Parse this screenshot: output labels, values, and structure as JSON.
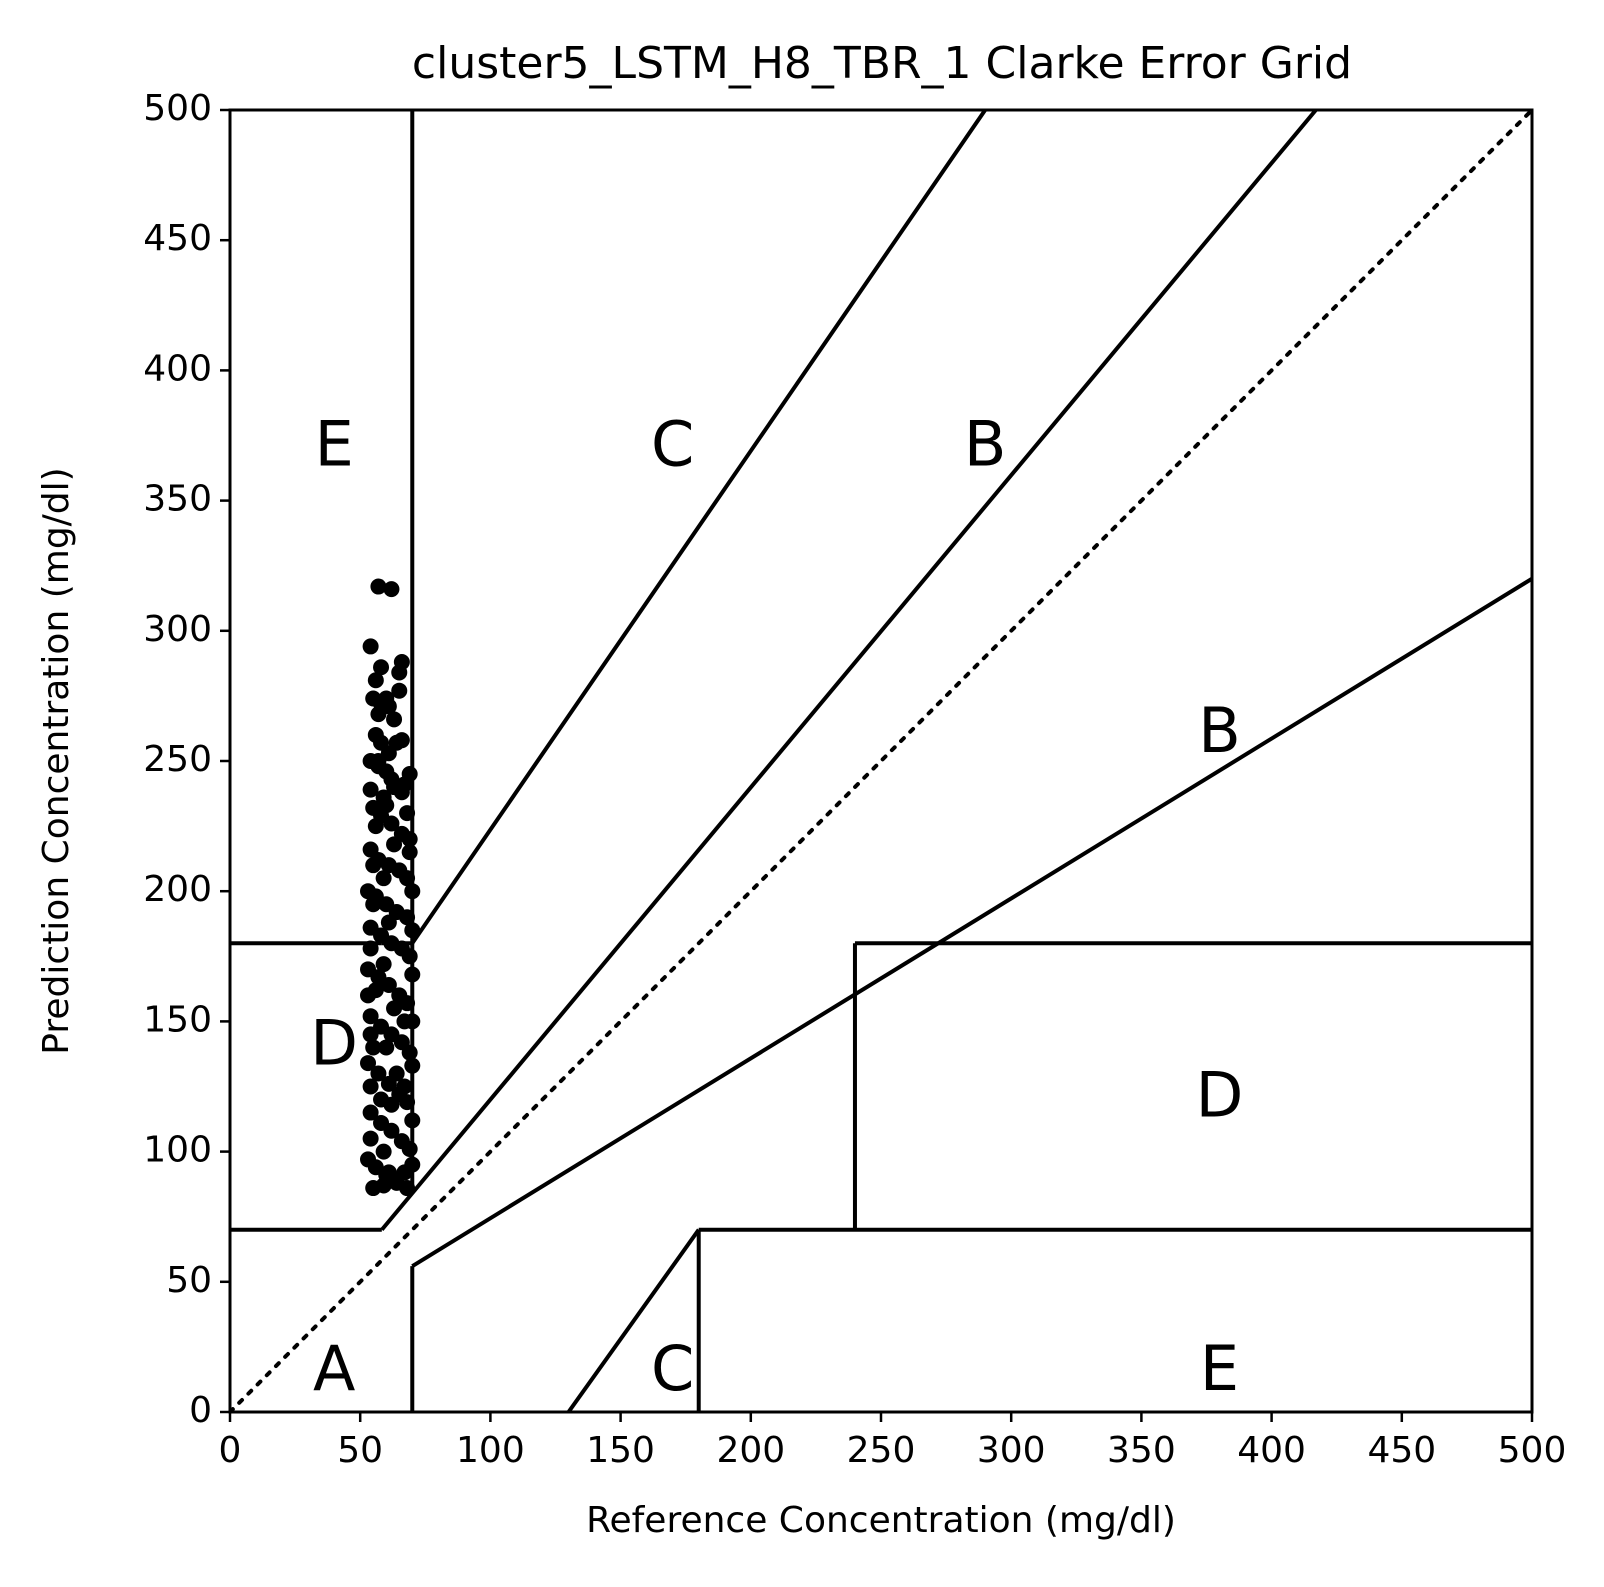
{
  "chart_data": {
    "type": "scatter",
    "title": "cluster5_LSTM_H8_TBR_1 Clarke Error Grid",
    "xlabel": "Reference Concentration (mg/dl)",
    "ylabel": "Prediction Concentration (mg/dl)",
    "xlim": [
      0,
      500
    ],
    "ylim": [
      0,
      500
    ],
    "xticks": [
      0,
      50,
      100,
      150,
      200,
      250,
      300,
      350,
      400,
      450,
      500
    ],
    "yticks": [
      0,
      50,
      100,
      150,
      200,
      250,
      300,
      350,
      400,
      450,
      500
    ],
    "grid": false,
    "legend": "none",
    "colors": {
      "lines": "#000000",
      "points": "#000000"
    },
    "reference_line": {
      "style": "dotted",
      "points": [
        [
          0,
          0
        ],
        [
          500,
          500
        ]
      ]
    },
    "zone_lines": [
      {
        "points": [
          [
            0,
            70
          ],
          [
            58.3,
            70
          ]
        ]
      },
      {
        "points": [
          [
            70,
            84
          ],
          [
            70,
            500
          ]
        ]
      },
      {
        "points": [
          [
            70,
            180
          ],
          [
            290,
            500
          ]
        ]
      },
      {
        "points": [
          [
            58.3,
            70
          ],
          [
            417,
            500
          ]
        ]
      },
      {
        "points": [
          [
            70,
            56
          ],
          [
            70,
            0
          ]
        ]
      },
      {
        "points": [
          [
            70,
            56
          ],
          [
            500,
            320
          ]
        ]
      },
      {
        "points": [
          [
            130,
            0
          ],
          [
            180,
            70
          ]
        ]
      },
      {
        "points": [
          [
            180,
            70
          ],
          [
            500,
            70
          ]
        ]
      },
      {
        "points": [
          [
            180,
            70
          ],
          [
            180,
            0
          ]
        ]
      },
      {
        "points": [
          [
            240,
            70
          ],
          [
            240,
            180
          ]
        ]
      },
      {
        "points": [
          [
            240,
            180
          ],
          [
            500,
            180
          ]
        ]
      },
      {
        "points": [
          [
            0,
            180
          ],
          [
            58.3,
            180
          ]
        ]
      },
      {
        "points": [
          [
            58.3,
            180
          ],
          [
            70,
            180
          ]
        ]
      }
    ],
    "zone_labels": [
      {
        "text": "E",
        "x": 40,
        "y": 370
      },
      {
        "text": "C",
        "x": 170,
        "y": 370
      },
      {
        "text": "B",
        "x": 290,
        "y": 370
      },
      {
        "text": "B",
        "x": 380,
        "y": 260
      },
      {
        "text": "D",
        "x": 40,
        "y": 140
      },
      {
        "text": "D",
        "x": 380,
        "y": 120
      },
      {
        "text": "A",
        "x": 40,
        "y": 15
      },
      {
        "text": "C",
        "x": 170,
        "y": 15
      },
      {
        "text": "E",
        "x": 380,
        "y": 15
      }
    ],
    "points": [
      [
        57,
        317
      ],
      [
        62,
        316
      ],
      [
        54,
        294
      ],
      [
        56,
        281
      ],
      [
        58,
        286
      ],
      [
        66,
        288
      ],
      [
        65,
        284
      ],
      [
        65,
        277
      ],
      [
        55,
        274
      ],
      [
        58,
        272
      ],
      [
        60,
        274
      ],
      [
        61,
        271
      ],
      [
        57,
        268
      ],
      [
        63,
        266
      ],
      [
        56,
        260
      ],
      [
        58,
        257
      ],
      [
        64,
        257
      ],
      [
        66,
        258
      ],
      [
        61,
        253
      ],
      [
        54,
        250
      ],
      [
        57,
        248
      ],
      [
        60,
        246
      ],
      [
        69,
        245
      ],
      [
        54,
        239
      ],
      [
        63,
        240
      ],
      [
        67,
        241
      ],
      [
        55,
        232
      ],
      [
        58,
        229
      ],
      [
        62,
        226
      ],
      [
        66,
        222
      ],
      [
        69,
        220
      ],
      [
        54,
        216
      ],
      [
        57,
        212
      ],
      [
        61,
        210
      ],
      [
        65,
        208
      ],
      [
        68,
        205
      ],
      [
        53,
        200
      ],
      [
        56,
        198
      ],
      [
        60,
        195
      ],
      [
        64,
        192
      ],
      [
        68,
        190
      ],
      [
        54,
        186
      ],
      [
        58,
        183
      ],
      [
        62,
        180
      ],
      [
        66,
        178
      ],
      [
        69,
        175
      ],
      [
        53,
        170
      ],
      [
        57,
        167
      ],
      [
        61,
        164
      ],
      [
        65,
        160
      ],
      [
        68,
        157
      ],
      [
        54,
        152
      ],
      [
        58,
        148
      ],
      [
        62,
        145
      ],
      [
        66,
        142
      ],
      [
        69,
        138
      ],
      [
        53,
        134
      ],
      [
        57,
        130
      ],
      [
        61,
        126
      ],
      [
        65,
        122
      ],
      [
        68,
        119
      ],
      [
        54,
        115
      ],
      [
        58,
        111
      ],
      [
        62,
        108
      ],
      [
        66,
        104
      ],
      [
        69,
        101
      ],
      [
        53,
        97
      ],
      [
        56,
        94
      ],
      [
        60,
        91
      ],
      [
        64,
        88
      ],
      [
        68,
        86
      ],
      [
        55,
        86
      ],
      [
        59,
        87
      ],
      [
        63,
        89
      ],
      [
        67,
        92
      ],
      [
        70,
        95
      ],
      [
        54,
        105
      ],
      [
        70,
        112
      ],
      [
        54,
        125
      ],
      [
        70,
        133
      ],
      [
        54,
        145
      ],
      [
        70,
        150
      ],
      [
        53,
        160
      ],
      [
        70,
        168
      ],
      [
        54,
        178
      ],
      [
        70,
        185
      ],
      [
        55,
        195
      ],
      [
        70,
        200
      ],
      [
        55,
        210
      ],
      [
        69,
        215
      ],
      [
        56,
        225
      ],
      [
        68,
        230
      ],
      [
        59,
        236
      ],
      [
        66,
        238
      ],
      [
        62,
        243
      ],
      [
        57,
        250
      ],
      [
        60,
        233
      ],
      [
        63,
        218
      ],
      [
        59,
        205
      ],
      [
        61,
        188
      ],
      [
        59,
        172
      ],
      [
        63,
        155
      ],
      [
        60,
        140
      ],
      [
        62,
        118
      ],
      [
        59,
        100
      ],
      [
        61,
        92
      ],
      [
        58,
        120
      ],
      [
        64,
        130
      ],
      [
        56,
        162
      ],
      [
        67,
        150
      ],
      [
        55,
        140
      ],
      [
        67,
        125
      ]
    ]
  }
}
